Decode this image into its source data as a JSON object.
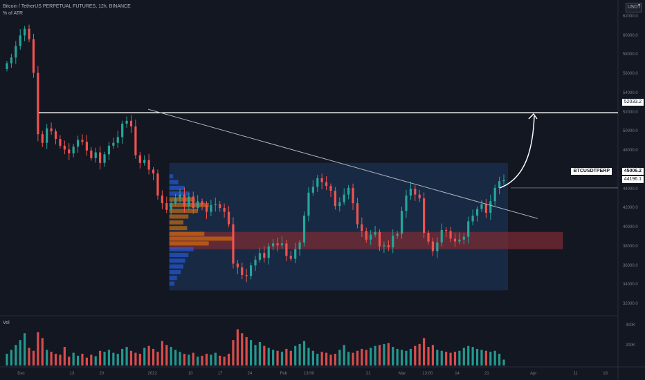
{
  "legend": {
    "title": "Bitcoin / TetherUS PERPETUAL FUTURES, 12h, BINANCE",
    "indicator": "% of ATR"
  },
  "volume_label": "Vol",
  "currency_button": "USDT",
  "price_axis": {
    "ticks": [
      "62000.0",
      "60000.0",
      "58000.0",
      "56000.0",
      "54000.0",
      "52000.0",
      "50000.0",
      "48000.0",
      "46000.0",
      "44000.0",
      "42000.0",
      "40000.0",
      "38000.0",
      "36000.0",
      "34000.0",
      "32000.0"
    ]
  },
  "volume_axis": {
    "ticks": [
      "400K",
      "200K"
    ]
  },
  "time_axis": {
    "ticks": [
      "Dec",
      "13",
      "20",
      "2022",
      "10",
      "17",
      "24",
      "Feb",
      "13:00",
      "21",
      "Mar",
      "13:00",
      "14",
      "21",
      "Apr",
      "11",
      "18"
    ]
  },
  "price_labels": {
    "horizontal_line": "52033.2",
    "symbol": "BTCUSDTPERP",
    "last_price": "45006.2",
    "marker_price": "44196.1"
  },
  "colors": {
    "background": "#131722",
    "up": "#26a69a",
    "down": "#ef5350",
    "range_box": "#1e3a5f",
    "zone": "#7a2b33",
    "profile_blue": "#2962ff",
    "profile_orange": "#f57c00"
  },
  "chart_data": {
    "type": "candlestick",
    "y_range": [
      31000,
      63800
    ],
    "horizontal_line": 52033.2,
    "last_price": 45006.2,
    "marker_price": 44196.1,
    "trendline": {
      "from": {
        "date": "2021-12-31",
        "price": 52400
      },
      "to": {
        "date": "2022-04-02",
        "price": 41000
      }
    },
    "range_box": {
      "from": "2022-01-05",
      "to": "2022-03-26",
      "low": 33500,
      "high": 46800
    },
    "demand_zone": {
      "from": "2022-01-05",
      "to": "2022-04-08",
      "low": 37800,
      "high": 39600
    },
    "closes": [
      57200,
      57800,
      59000,
      60100,
      60800,
      59700,
      56200,
      49800,
      48900,
      50400,
      50100,
      49300,
      48600,
      48200,
      47800,
      48500,
      49200,
      49000,
      48100,
      47300,
      47900,
      46800,
      47700,
      48600,
      48900,
      49500,
      50900,
      51200,
      50600,
      47600,
      46800,
      47100,
      46100,
      45700,
      43400,
      42600,
      41900,
      42600,
      43100,
      43500,
      42300,
      43300,
      42100,
      42800,
      42400,
      41700,
      42400,
      42500,
      42100,
      41700,
      40400,
      36300,
      35900,
      35100,
      35000,
      36100,
      36700,
      37400,
      36900,
      38100,
      38400,
      38200,
      38400,
      37100,
      36800,
      37800,
      38500,
      41300,
      43700,
      44300,
      45200,
      44800,
      44400,
      43900,
      42300,
      42700,
      43500,
      44200,
      42600,
      40400,
      39700,
      38800,
      39300,
      39600,
      38100,
      38200,
      38000,
      39200,
      39400,
      41800,
      43400,
      44100,
      43500,
      43100,
      39500,
      38600,
      37600,
      38500,
      39800,
      39700,
      38900,
      38600,
      38800,
      39100,
      40700,
      41300,
      42000,
      42500,
      41600,
      42800,
      44200,
      44900,
      45006
    ]
  },
  "volume_data": [
    120,
    160,
    210,
    260,
    330,
    180,
    150,
    340,
    280,
    160,
    140,
    120,
    110,
    190,
    90,
    130,
    100,
    120,
    80,
    110,
    95,
    150,
    140,
    160,
    130,
    120,
    170,
    190,
    150,
    130,
    120,
    180,
    200,
    170,
    140,
    250,
    210,
    190,
    160,
    140,
    120,
    110,
    130,
    90,
    100,
    120,
    110,
    130,
    100,
    90,
    120,
    260,
    370,
    330,
    290,
    260,
    210,
    240,
    200,
    180,
    160,
    150,
    140,
    170,
    150,
    200,
    220,
    250,
    180,
    150,
    120,
    140,
    130,
    110,
    120,
    160,
    210,
    140,
    130,
    150,
    170,
    160,
    180,
    200,
    210,
    220,
    230,
    190,
    170,
    160,
    150,
    170,
    200,
    220,
    280,
    190,
    210,
    160,
    150,
    140,
    130,
    140,
    150,
    180,
    200,
    190,
    170,
    160,
    150,
    140,
    150,
    120,
    60
  ],
  "volume_profile": [
    {
      "price": 34200,
      "w": 0.08,
      "tone": "blue"
    },
    {
      "price": 34800,
      "w": 0.12,
      "tone": "blue"
    },
    {
      "price": 35400,
      "w": 0.18,
      "tone": "blue"
    },
    {
      "price": 36000,
      "w": 0.22,
      "tone": "blue"
    },
    {
      "price": 36600,
      "w": 0.25,
      "tone": "blue"
    },
    {
      "price": 37200,
      "w": 0.3,
      "tone": "blue"
    },
    {
      "price": 37800,
      "w": 0.38,
      "tone": "blue"
    },
    {
      "price": 38400,
      "w": 0.62,
      "tone": "orange"
    },
    {
      "price": 38900,
      "w": 1.0,
      "tone": "orange"
    },
    {
      "price": 39400,
      "w": 0.55,
      "tone": "orange"
    },
    {
      "price": 40000,
      "w": 0.28,
      "tone": "orange"
    },
    {
      "price": 40600,
      "w": 0.22,
      "tone": "orange"
    },
    {
      "price": 41200,
      "w": 0.3,
      "tone": "orange"
    },
    {
      "price": 41800,
      "w": 0.45,
      "tone": "orange"
    },
    {
      "price": 42400,
      "w": 0.62,
      "tone": "orange"
    },
    {
      "price": 43000,
      "w": 0.4,
      "tone": "orange"
    },
    {
      "price": 43600,
      "w": 0.32,
      "tone": "blue"
    },
    {
      "price": 44200,
      "w": 0.24,
      "tone": "blue"
    },
    {
      "price": 44800,
      "w": 0.14,
      "tone": "blue"
    },
    {
      "price": 45400,
      "w": 0.06,
      "tone": "blue"
    }
  ]
}
